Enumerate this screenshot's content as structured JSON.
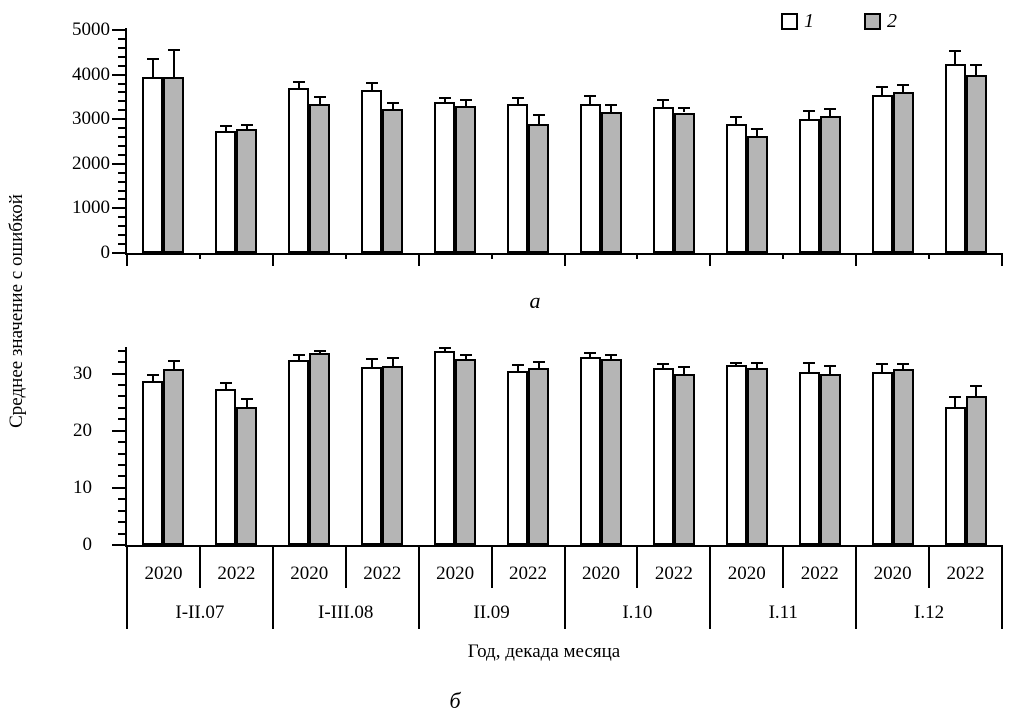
{
  "figure": {
    "ylabel": "Среднее значение с ошибкой",
    "xlabel": "Год, декада месяца",
    "panel_a_label": "а",
    "panel_b_label": "б"
  },
  "legend": {
    "items": [
      {
        "label": "1",
        "color": "#ffffff"
      },
      {
        "label": "2",
        "color": "#b5b5b5"
      }
    ]
  },
  "chart_data": [
    {
      "type": "bar",
      "panel": "а",
      "ylim": [
        0,
        5000
      ],
      "ymajor_step": 1000,
      "yminor_step": 200,
      "ytick_labels": [
        "0",
        "1000",
        "2000",
        "3000",
        "4000",
        "5000"
      ],
      "grid": false,
      "legend_position": "top-right",
      "groups": [
        "I-II.07",
        "I-III.08",
        "II.09",
        "I.10",
        "I.11",
        "I.12"
      ],
      "years_per_group": [
        "2020",
        "2022"
      ],
      "series": [
        {
          "name": "1",
          "fill": "#ffffff",
          "values": [
            3950,
            2740,
            3700,
            3650,
            3380,
            3350,
            3350,
            3270,
            2900,
            3010,
            3550,
            4240
          ],
          "errors": [
            400,
            110,
            140,
            160,
            100,
            120,
            180,
            150,
            150,
            180,
            170,
            300
          ]
        },
        {
          "name": "2",
          "fill": "#b5b5b5",
          "values": [
            3950,
            2770,
            3350,
            3230,
            3300,
            2900,
            3170,
            3150,
            2620,
            3080,
            3600,
            3980
          ],
          "errors": [
            600,
            110,
            150,
            130,
            120,
            190,
            140,
            110,
            150,
            150,
            170,
            240
          ]
        }
      ]
    },
    {
      "type": "bar",
      "panel": "б",
      "ylim": [
        0,
        35
      ],
      "ymajor_step": 10,
      "yminor_step": 2,
      "ytick_labels": [
        "0",
        "10",
        "20",
        "30"
      ],
      "grid": false,
      "groups": [
        "I-II.07",
        "I-III.08",
        "II.09",
        "I.10",
        "I.11",
        "I.12"
      ],
      "years_per_group": [
        "2020",
        "2022"
      ],
      "series": [
        {
          "name": "1",
          "fill": "#ffffff",
          "values": [
            28.7,
            27.3,
            32.3,
            31.2,
            34.0,
            30.5,
            32.9,
            30.9,
            31.4,
            30.2,
            30.3,
            24.2
          ],
          "errors": [
            1.0,
            1.0,
            0.9,
            1.3,
            0.4,
            1.0,
            0.7,
            0.8,
            0.5,
            1.7,
            1.4,
            1.7
          ]
        },
        {
          "name": "2",
          "fill": "#b5b5b5",
          "values": [
            30.8,
            24.1,
            33.6,
            31.3,
            32.6,
            31.0,
            32.5,
            29.9,
            30.9,
            29.9,
            30.7,
            26.1
          ],
          "errors": [
            1.3,
            1.4,
            0.4,
            1.4,
            0.7,
            1.0,
            0.8,
            1.3,
            1.0,
            1.4,
            0.9,
            1.7
          ]
        }
      ],
      "x_axis_table": {
        "years_row": [
          "2020",
          "2022"
        ],
        "group_row": [
          "I-II.07",
          "I-III.08",
          "II.09",
          "I.10",
          "I.11",
          "I.12"
        ]
      }
    }
  ]
}
